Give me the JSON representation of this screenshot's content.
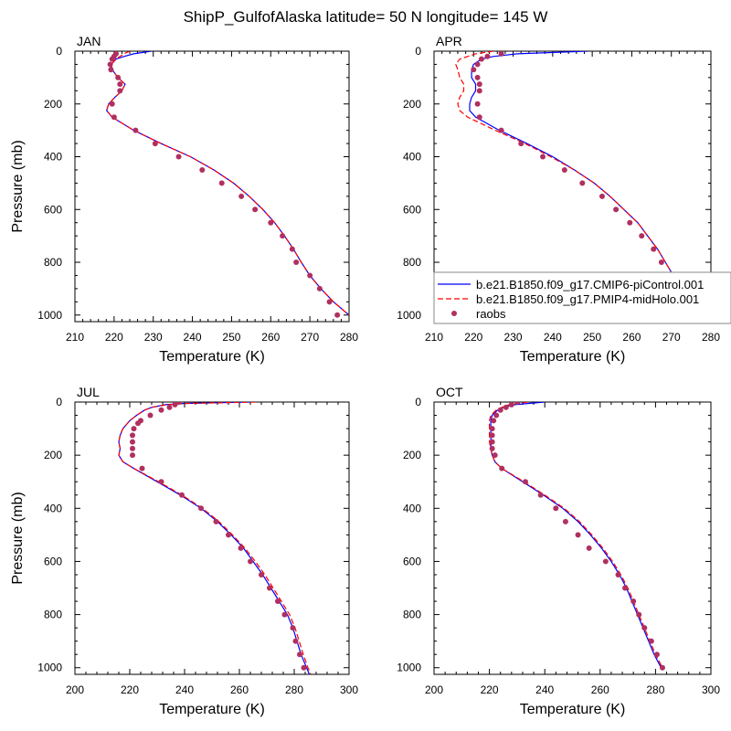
{
  "title": "ShipP_GulfofAlaska  latitude= 50 N longitude= 145 W",
  "colors": {
    "control": "#0000ff",
    "midholo": "#ff0000",
    "raobs": "#b03060"
  },
  "legend": {
    "entries": [
      {
        "label": "b.e21.B1850.f09_g17.CMIP6-piControl.001",
        "style": "solid-line",
        "color": "#0000ff"
      },
      {
        "label": "b.e21.B1850.f09_g17.PMIP4-midHolo.001",
        "style": "dashed-line",
        "color": "#ff0000"
      },
      {
        "label": "raobs",
        "style": "dot",
        "color": "#b03060"
      }
    ]
  },
  "chart_data": [
    {
      "type": "line",
      "panel_label": "JAN",
      "xlabel": "Temperature (K)",
      "ylabel": "Pressure (mb)",
      "xlim": [
        210,
        280
      ],
      "ylim": [
        1025,
        0
      ],
      "xticks": [
        210,
        220,
        230,
        240,
        250,
        260,
        270,
        280
      ],
      "yticks": [
        0,
        200,
        400,
        600,
        800,
        1000
      ],
      "series": [
        {
          "name": "b.e21.B1850.f09_g17.CMIP6-piControl.001",
          "style": "solid",
          "p": [
            0,
            10,
            20,
            30,
            50,
            70,
            100,
            125,
            150,
            175,
            200,
            225,
            250,
            300,
            350,
            400,
            450,
            500,
            550,
            600,
            650,
            700,
            750,
            800,
            850,
            900,
            950,
            1000
          ],
          "t": [
            229.5,
            225.0,
            222.5,
            220.5,
            219.3,
            219.5,
            221.0,
            222.8,
            222.0,
            220.2,
            218.6,
            218.1,
            219.5,
            225.0,
            232.0,
            239.5,
            245.5,
            250.5,
            254.5,
            258.0,
            261.0,
            263.5,
            265.8,
            267.8,
            270.0,
            272.8,
            276.0,
            280.0
          ]
        },
        {
          "name": "b.e21.B1850.f09_g17.PMIP4-midHolo.001",
          "style": "dashed",
          "p": [
            0,
            10,
            20,
            30,
            50,
            70,
            100,
            125,
            150,
            175,
            200,
            225,
            250,
            300,
            350,
            400,
            450,
            500,
            550,
            600,
            650,
            700,
            750,
            800,
            850,
            900,
            950,
            1000
          ],
          "t": [
            224.0,
            222.5,
            221.5,
            220.5,
            219.3,
            219.5,
            221.0,
            222.8,
            222.0,
            220.2,
            218.6,
            218.1,
            219.5,
            225.0,
            232.0,
            239.5,
            245.5,
            250.5,
            254.5,
            258.0,
            261.0,
            263.5,
            265.8,
            267.8,
            270.0,
            272.8,
            276.0,
            280.0
          ]
        },
        {
          "name": "raobs",
          "style": "dots",
          "p": [
            10,
            20,
            30,
            50,
            70,
            100,
            125,
            150,
            200,
            250,
            300,
            350,
            400,
            450,
            500,
            550,
            600,
            650,
            700,
            750,
            800,
            850,
            900,
            950,
            1000
          ],
          "t": [
            220.5,
            220.0,
            219.5,
            219.0,
            219.2,
            221.0,
            221.5,
            221.5,
            219.5,
            220.0,
            225.5,
            230.5,
            236.5,
            242.5,
            247.5,
            252.5,
            256.0,
            260.0,
            263.0,
            265.5,
            266.5,
            270.0,
            272.5,
            275.0,
            277.0
          ]
        }
      ]
    },
    {
      "type": "line",
      "panel_label": "APR",
      "xlabel": "Temperature (K)",
      "ylabel": "",
      "xlim": [
        210,
        280
      ],
      "ylim": [
        1025,
        0
      ],
      "xticks": [
        210,
        220,
        230,
        240,
        250,
        260,
        270,
        280
      ],
      "yticks": [
        0,
        200,
        400,
        600,
        800,
        1000
      ],
      "series": [
        {
          "name": "b.e21.B1850.f09_g17.CMIP6-piControl.001",
          "style": "solid",
          "p": [
            0,
            10,
            20,
            30,
            50,
            70,
            100,
            125,
            150,
            175,
            200,
            225,
            250,
            300,
            350,
            400,
            450,
            500,
            550,
            600,
            650,
            700,
            750,
            800,
            850,
            900,
            950,
            1000
          ],
          "t": [
            249.0,
            231.0,
            225.0,
            222.0,
            220.0,
            219.5,
            219.5,
            220.5,
            220.5,
            219.5,
            219.0,
            219.0,
            220.5,
            226.5,
            233.5,
            240.0,
            245.5,
            250.5,
            254.5,
            258.0,
            261.5,
            264.0,
            266.5,
            268.5,
            270.5,
            273.0,
            276.0,
            279.5
          ]
        },
        {
          "name": "b.e21.B1850.f09_g17.PMIP4-midHolo.001",
          "style": "dashed",
          "p": [
            0,
            10,
            20,
            30,
            50,
            70,
            100,
            125,
            150,
            175,
            200,
            225,
            250,
            300,
            350,
            400,
            450,
            500,
            550,
            600,
            650,
            700,
            750,
            800,
            850,
            900,
            950,
            1000
          ],
          "t": [
            225.0,
            220.5,
            218.5,
            216.5,
            215.5,
            216.0,
            216.5,
            217.5,
            217.5,
            216.5,
            216.0,
            216.5,
            218.5,
            225.5,
            233.0,
            239.5,
            245.5,
            250.5,
            254.5,
            258.0,
            261.5,
            264.0,
            266.5,
            268.5,
            270.5,
            273.0,
            276.0,
            279.5
          ]
        },
        {
          "name": "raobs",
          "style": "dots",
          "p": [
            10,
            20,
            30,
            50,
            70,
            100,
            125,
            150,
            200,
            250,
            300,
            350,
            400,
            450,
            500,
            550,
            600,
            650,
            700,
            750,
            800,
            850,
            900,
            950,
            1000
          ],
          "t": [
            227.0,
            223.5,
            222.0,
            221.0,
            220.0,
            221.0,
            221.5,
            221.5,
            221.0,
            221.5,
            227.0,
            232.0,
            237.5,
            243.0,
            247.5,
            252.5,
            256.0,
            259.5,
            262.5,
            265.5,
            267.5,
            270.0,
            272.5,
            275.5,
            278.0
          ]
        }
      ]
    },
    {
      "type": "line",
      "panel_label": "JUL",
      "xlabel": "Temperature (K)",
      "ylabel": "Pressure (mb)",
      "xlim": [
        200,
        300
      ],
      "ylim": [
        1025,
        0
      ],
      "xticks": [
        200,
        220,
        240,
        260,
        280,
        300
      ],
      "yticks": [
        0,
        200,
        400,
        600,
        800,
        1000
      ],
      "series": [
        {
          "name": "b.e21.B1850.f09_g17.CMIP6-piControl.001",
          "style": "solid",
          "p": [
            0,
            5,
            10,
            20,
            30,
            50,
            70,
            100,
            125,
            150,
            175,
            200,
            225,
            250,
            300,
            350,
            400,
            450,
            500,
            550,
            600,
            650,
            700,
            750,
            800,
            850,
            900,
            950,
            1000,
            1025
          ],
          "t": [
            264.0,
            240.0,
            233.0,
            228.0,
            225.5,
            222.5,
            220.0,
            217.5,
            216.5,
            216.0,
            216.5,
            216.0,
            217.5,
            221.5,
            230.0,
            238.5,
            246.0,
            252.0,
            257.0,
            261.5,
            265.0,
            268.5,
            271.5,
            274.5,
            277.5,
            279.5,
            281.0,
            282.5,
            284.5,
            285.5
          ]
        },
        {
          "name": "b.e21.B1850.f09_g17.PMIP4-midHolo.001",
          "style": "dashed",
          "p": [
            0,
            5,
            10,
            20,
            30,
            50,
            70,
            100,
            125,
            150,
            175,
            200,
            225,
            250,
            300,
            350,
            400,
            450,
            500,
            550,
            600,
            650,
            700,
            750,
            800,
            850,
            900,
            950,
            1000,
            1025
          ],
          "t": [
            266.0,
            241.0,
            233.5,
            228.0,
            225.5,
            222.5,
            220.0,
            217.5,
            216.5,
            216.0,
            216.5,
            216.0,
            217.5,
            221.5,
            230.5,
            239.0,
            246.5,
            252.5,
            257.5,
            262.0,
            265.8,
            269.3,
            272.3,
            275.3,
            278.3,
            280.3,
            281.8,
            283.3,
            285.0,
            286.0
          ]
        },
        {
          "name": "raobs",
          "style": "dots",
          "p": [
            0,
            10,
            20,
            30,
            50,
            70,
            80,
            100,
            125,
            150,
            175,
            200,
            250,
            300,
            350,
            400,
            450,
            500,
            550,
            600,
            650,
            700,
            750,
            800,
            850,
            900,
            950,
            1000
          ],
          "t": [
            238.0,
            236.5,
            234.5,
            231.5,
            227.5,
            224.0,
            223.0,
            221.5,
            221.0,
            221.0,
            221.0,
            221.0,
            224.5,
            231.5,
            239.0,
            246.0,
            251.5,
            256.0,
            260.5,
            264.0,
            268.0,
            271.0,
            274.0,
            276.5,
            279.5,
            280.5,
            282.0,
            283.5
          ]
        }
      ]
    },
    {
      "type": "line",
      "panel_label": "OCT",
      "xlabel": "Temperature (K)",
      "ylabel": "",
      "xlim": [
        200,
        300
      ],
      "ylim": [
        1025,
        0
      ],
      "xticks": [
        200,
        220,
        240,
        260,
        280,
        300
      ],
      "yticks": [
        0,
        200,
        400,
        600,
        800,
        1000
      ],
      "series": [
        {
          "name": "b.e21.B1850.f09_g17.CMIP6-piControl.001",
          "style": "solid",
          "p": [
            0,
            10,
            20,
            30,
            50,
            70,
            100,
            125,
            150,
            175,
            200,
            225,
            250,
            300,
            350,
            400,
            450,
            500,
            550,
            600,
            650,
            700,
            750,
            800,
            850,
            900,
            950,
            1000
          ],
          "t": [
            240.0,
            229.0,
            225.0,
            223.0,
            221.0,
            220.5,
            220.5,
            220.5,
            220.5,
            220.5,
            221.0,
            222.0,
            224.5,
            232.0,
            239.5,
            246.5,
            252.0,
            256.5,
            260.5,
            264.0,
            267.0,
            269.5,
            271.5,
            273.5,
            275.5,
            277.5,
            279.5,
            282.0
          ]
        },
        {
          "name": "b.e21.B1850.f09_g17.PMIP4-midHolo.001",
          "style": "dashed",
          "p": [
            0,
            10,
            20,
            30,
            50,
            70,
            100,
            125,
            150,
            175,
            200,
            225,
            250,
            300,
            350,
            400,
            450,
            500,
            550,
            600,
            650,
            700,
            750,
            800,
            850,
            900,
            950,
            1000
          ],
          "t": [
            234.0,
            227.0,
            224.5,
            222.5,
            220.5,
            220.0,
            220.0,
            220.0,
            220.0,
            220.5,
            221.0,
            222.0,
            224.5,
            232.5,
            240.0,
            247.0,
            252.5,
            257.0,
            261.0,
            264.5,
            267.5,
            270.0,
            272.0,
            274.0,
            276.0,
            278.0,
            280.0,
            282.5
          ]
        },
        {
          "name": "raobs",
          "style": "dots",
          "p": [
            0,
            10,
            20,
            30,
            50,
            70,
            100,
            125,
            150,
            175,
            200,
            250,
            300,
            350,
            400,
            450,
            500,
            550,
            600,
            650,
            700,
            750,
            800,
            850,
            900,
            950,
            1000
          ],
          "t": [
            230.0,
            228.0,
            226.0,
            224.0,
            222.5,
            221.5,
            221.0,
            221.0,
            221.0,
            221.0,
            222.0,
            224.5,
            233.0,
            238.5,
            244.0,
            247.5,
            252.0,
            256.0,
            262.0,
            266.5,
            269.0,
            272.0,
            274.0,
            276.0,
            278.5,
            280.5,
            282.5
          ]
        }
      ]
    }
  ]
}
